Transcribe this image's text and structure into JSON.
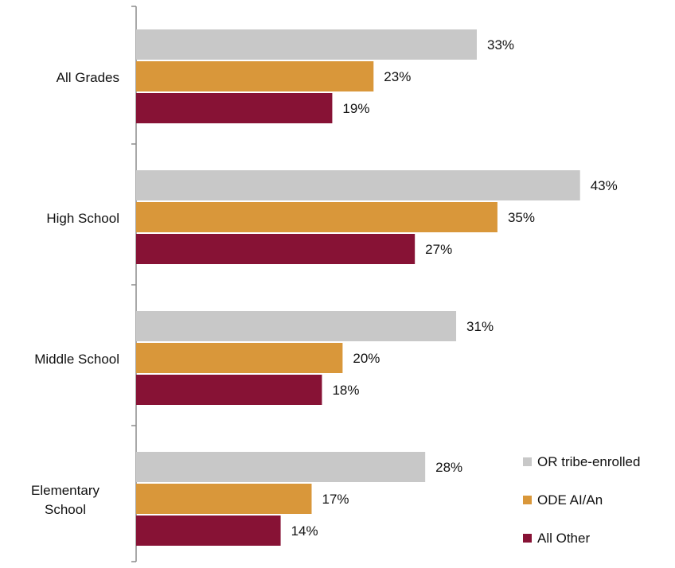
{
  "chart_data": {
    "type": "bar",
    "orientation": "horizontal",
    "title": "",
    "xlabel": "",
    "ylabel": "",
    "xlim": [
      0,
      50
    ],
    "grid": false,
    "legend_position": "bottom-right",
    "categories": [
      {
        "lines": [
          "All Grades"
        ]
      },
      {
        "lines": [
          "High School"
        ]
      },
      {
        "lines": [
          "Middle School"
        ]
      },
      {
        "lines": [
          "Elementary",
          "School"
        ]
      }
    ],
    "series": [
      {
        "name": "OR tribe-enrolled",
        "color": "#c8c8c8",
        "values": [
          33,
          43,
          31,
          28
        ],
        "labels": [
          "33%",
          "43%",
          "31%",
          "28%"
        ]
      },
      {
        "name": "ODE AI/An",
        "color": "#d9973a",
        "values": [
          23,
          35,
          20,
          17
        ],
        "labels": [
          "23%",
          "35%",
          "20%",
          "17%"
        ]
      },
      {
        "name": "All Other",
        "color": "#871235",
        "values": [
          19,
          27,
          18,
          14
        ],
        "labels": [
          "19%",
          "27%",
          "18%",
          "14%"
        ]
      }
    ]
  }
}
